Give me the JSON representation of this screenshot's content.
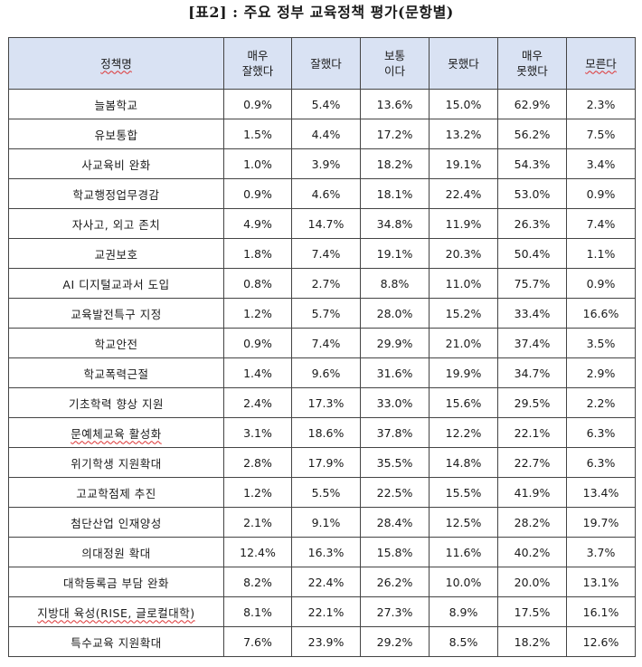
{
  "title": "[표2] : 주요 정부 교육정책 평가(문항별)",
  "columns": [
    "정책명",
    "매우\n잘했다",
    "잘했다",
    "보통\n이다",
    "못했다",
    "매우\n못했다",
    "모른다"
  ],
  "rows": [
    [
      "늘봄학교",
      "0.9%",
      "5.4%",
      "13.6%",
      "15.0%",
      "62.9%",
      "2.3%"
    ],
    [
      "유보통합",
      "1.5%",
      "4.4%",
      "17.2%",
      "13.2%",
      "56.2%",
      "7.5%"
    ],
    [
      "사교육비 완화",
      "1.0%",
      "3.9%",
      "18.2%",
      "19.1%",
      "54.3%",
      "3.4%"
    ],
    [
      "학교행정업무경감",
      "0.9%",
      "4.6%",
      "18.1%",
      "22.4%",
      "53.0%",
      "0.9%"
    ],
    [
      "자사고, 외고 존치",
      "4.9%",
      "14.7%",
      "34.8%",
      "11.9%",
      "26.3%",
      "7.4%"
    ],
    [
      "교권보호",
      "1.8%",
      "7.4%",
      "19.1%",
      "20.3%",
      "50.4%",
      "1.1%"
    ],
    [
      "AI 디지털교과서 도입",
      "0.8%",
      "2.7%",
      "8.8%",
      "11.0%",
      "75.7%",
      "0.9%"
    ],
    [
      "교육발전특구 지정",
      "1.2%",
      "5.7%",
      "28.0%",
      "15.2%",
      "33.4%",
      "16.6%"
    ],
    [
      "학교안전",
      "0.9%",
      "7.4%",
      "29.9%",
      "21.0%",
      "37.4%",
      "3.5%"
    ],
    [
      "학교폭력근절",
      "1.4%",
      "9.6%",
      "31.6%",
      "19.9%",
      "34.7%",
      "2.9%"
    ],
    [
      "기초학력 향상 지원",
      "2.4%",
      "17.3%",
      "33.0%",
      "15.6%",
      "29.5%",
      "2.2%"
    ],
    [
      "문예체교육 활성화",
      "3.1%",
      "18.6%",
      "37.8%",
      "12.2%",
      "22.1%",
      "6.3%"
    ],
    [
      "위기학생 지원확대",
      "2.8%",
      "17.9%",
      "35.5%",
      "14.8%",
      "22.7%",
      "6.3%"
    ],
    [
      "고교학점제 추진",
      "1.2%",
      "5.5%",
      "22.5%",
      "15.5%",
      "41.9%",
      "13.4%"
    ],
    [
      "첨단산업 인재양성",
      "2.1%",
      "9.1%",
      "28.4%",
      "12.5%",
      "28.2%",
      "19.7%"
    ],
    [
      "의대정원 확대",
      "12.4%",
      "16.3%",
      "15.8%",
      "11.6%",
      "40.2%",
      "3.7%"
    ],
    [
      "대학등록금 부담 완화",
      "8.2%",
      "22.4%",
      "26.2%",
      "10.0%",
      "20.0%",
      "13.1%"
    ],
    [
      "지방대 육성(RISE, 글로컬대학)",
      "8.1%",
      "22.1%",
      "27.3%",
      "8.9%",
      "17.5%",
      "16.1%"
    ],
    [
      "특수교육 지원확대",
      "7.6%",
      "23.9%",
      "29.2%",
      "8.5%",
      "18.2%",
      "12.6%"
    ]
  ]
}
